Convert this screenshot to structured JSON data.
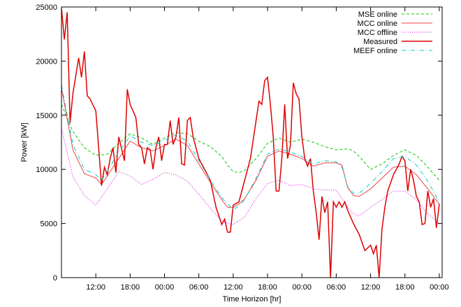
{
  "chart_data": {
    "type": "line",
    "title": "",
    "xlabel": "Time Horizon [hr]",
    "ylabel": "Power [kW]",
    "x_unit": "hours",
    "xlim": [
      0,
      120
    ],
    "ylim": [
      0,
      25000
    ],
    "grid": false,
    "legend_position": "top-right",
    "x_ticks": [
      {
        "x": 6,
        "label": "12:00"
      },
      {
        "x": 12,
        "label": "18:00"
      },
      {
        "x": 18,
        "label": "00:00"
      },
      {
        "x": 24,
        "label": "06:00"
      },
      {
        "x": 30,
        "label": "12:00"
      },
      {
        "x": 36,
        "label": "18:00"
      },
      {
        "x": 42,
        "label": "00:00"
      },
      {
        "x": 48,
        "label": "06:00"
      },
      {
        "x": 54,
        "label": "12:00"
      },
      {
        "x": 60,
        "label": "18:00"
      },
      {
        "x": 66,
        "label": "00:00"
      }
    ],
    "y_ticks": [
      0,
      5000,
      10000,
      15000,
      20000,
      25000
    ],
    "series": [
      {
        "name": "MSE online",
        "color": "#00cc00",
        "dash": "dashed",
        "x": [
          0,
          2,
          4,
          6,
          8,
          10,
          12,
          14,
          16,
          18,
          20,
          22,
          24,
          26,
          28,
          29,
          30,
          31,
          32,
          34,
          36,
          38,
          40,
          42,
          44,
          46,
          48,
          50,
          51,
          52,
          54,
          56,
          58,
          60,
          62,
          64,
          66
        ],
        "y": [
          16000,
          13500,
          12000,
          11300,
          11400,
          12400,
          13300,
          12900,
          12300,
          12900,
          13400,
          13300,
          12600,
          12100,
          11200,
          10400,
          9800,
          9700,
          9900,
          11000,
          12400,
          12900,
          12500,
          12800,
          12500,
          12100,
          11800,
          11900,
          11700,
          11200,
          10000,
          10500,
          11300,
          11800,
          11300,
          10200,
          9000
        ]
      },
      {
        "name": "MCC online",
        "color": "#ee4444",
        "dash": "solid",
        "x": [
          0,
          2,
          4,
          6,
          7,
          8,
          10,
          12,
          14,
          16,
          18,
          20,
          22,
          24,
          26,
          28,
          29,
          30,
          31,
          32,
          34,
          36,
          38,
          40,
          42,
          44,
          46,
          48,
          49,
          50,
          51,
          52,
          54,
          56,
          58,
          60,
          62,
          64,
          66
        ],
        "y": [
          17500,
          11800,
          9600,
          9200,
          8600,
          9400,
          11000,
          12600,
          12000,
          11700,
          12200,
          12800,
          12200,
          10500,
          8800,
          7200,
          6500,
          6500,
          6800,
          7300,
          9000,
          11200,
          11700,
          11400,
          11000,
          10300,
          10600,
          10600,
          10400,
          8300,
          7600,
          7500,
          8200,
          9200,
          10200,
          10300,
          9500,
          8200,
          6800
        ]
      },
      {
        "name": "MCC offline",
        "color": "#dd00dd",
        "dash": "dotted",
        "x": [
          0,
          2,
          4,
          6,
          8,
          10,
          12,
          14,
          16,
          18,
          20,
          22,
          24,
          26,
          28,
          30,
          32,
          34,
          36,
          38,
          40,
          42,
          44,
          46,
          48,
          50,
          51,
          52,
          54,
          56,
          58,
          60,
          62,
          64,
          66
        ],
        "y": [
          13800,
          9300,
          7600,
          6700,
          8200,
          9800,
          9400,
          8600,
          9100,
          9700,
          9500,
          8900,
          7700,
          6400,
          5200,
          4900,
          5600,
          7300,
          8700,
          9000,
          8500,
          8600,
          8200,
          8100,
          8100,
          6500,
          5900,
          5700,
          6500,
          7200,
          8000,
          8000,
          7200,
          5900,
          5000
        ]
      },
      {
        "name": "Measured",
        "color": "#dd0000",
        "dash": "solid",
        "x": [
          0,
          0.5,
          1,
          1.5,
          2,
          3,
          3.5,
          4,
          4.5,
          5,
          6,
          7,
          7.5,
          8,
          8.5,
          9,
          9.5,
          10,
          11,
          11.5,
          12,
          13,
          13.5,
          14,
          14.5,
          15,
          15.5,
          16,
          16.5,
          17,
          17.5,
          18,
          18.5,
          19,
          19.5,
          20,
          20.5,
          21,
          21.5,
          22,
          22.5,
          23,
          24,
          26,
          27,
          28,
          28.5,
          29,
          29.5,
          30,
          31,
          32,
          33,
          34,
          34.5,
          35,
          35.5,
          36,
          36.5,
          37,
          37.5,
          38,
          38.5,
          39,
          39.5,
          40,
          40.5,
          41,
          41.5,
          42,
          42.5,
          43,
          43.5,
          44,
          44.5,
          45,
          45.5,
          46,
          46.5,
          47,
          47.5,
          48,
          48.5,
          49,
          49.5,
          50,
          51,
          52,
          53,
          54,
          54.5,
          55,
          55.5,
          56,
          56.5,
          57,
          58,
          59,
          59.5,
          60,
          60.5,
          61,
          61.5,
          62,
          62.5,
          63,
          63.5,
          64,
          64.5,
          65,
          65.5,
          66
        ],
        "y": [
          24900,
          22000,
          24500,
          14300,
          17000,
          20300,
          18500,
          20900,
          16800,
          16500,
          15400,
          8500,
          10200,
          9500,
          11000,
          12000,
          9700,
          13000,
          10800,
          17400,
          16000,
          14800,
          12300,
          12000,
          10500,
          12000,
          11800,
          10000,
          12000,
          13000,
          10800,
          12300,
          12300,
          14500,
          12300,
          13000,
          14800,
          10500,
          10400,
          14500,
          14800,
          13000,
          11000,
          9000,
          6500,
          4900,
          5400,
          4200,
          4200,
          6700,
          7000,
          9000,
          11000,
          14500,
          16300,
          16000,
          18200,
          18500,
          16000,
          13000,
          8000,
          8000,
          11000,
          16000,
          11000,
          12200,
          18000,
          17000,
          16500,
          13000,
          11000,
          10300,
          11000,
          8000,
          6000,
          3500,
          7500,
          6000,
          7000,
          0,
          7000,
          6500,
          7000,
          6500,
          7000,
          6200,
          5000,
          4000,
          2500,
          3000,
          2200,
          3000,
          0,
          4500,
          6500,
          8000,
          9500,
          10500,
          11200,
          10800,
          8000,
          10000,
          9000,
          7500,
          7000,
          4900,
          5000,
          8000,
          6500,
          7300,
          4600,
          6800
        ]
      },
      {
        "name": "MEEF online",
        "color": "#00cccc",
        "dash": "dashdot",
        "x": [
          0,
          2,
          4,
          6,
          7,
          8,
          10,
          12,
          14,
          16,
          18,
          20,
          22,
          24,
          26,
          28,
          29,
          30,
          31,
          32,
          34,
          36,
          38,
          40,
          42,
          44,
          46,
          48,
          49,
          50,
          51,
          52,
          54,
          56,
          58,
          60,
          62,
          64,
          66
        ],
        "y": [
          17800,
          12300,
          10000,
          9500,
          9000,
          9800,
          11600,
          13100,
          12500,
          12200,
          12700,
          13200,
          12600,
          10800,
          9000,
          7400,
          6800,
          6300,
          6600,
          7200,
          9200,
          11400,
          11900,
          11600,
          11200,
          10500,
          10800,
          10700,
          10200,
          8400,
          7800,
          7800,
          8700,
          9800,
          11000,
          11200,
          10400,
          8900,
          7000
        ]
      }
    ]
  }
}
